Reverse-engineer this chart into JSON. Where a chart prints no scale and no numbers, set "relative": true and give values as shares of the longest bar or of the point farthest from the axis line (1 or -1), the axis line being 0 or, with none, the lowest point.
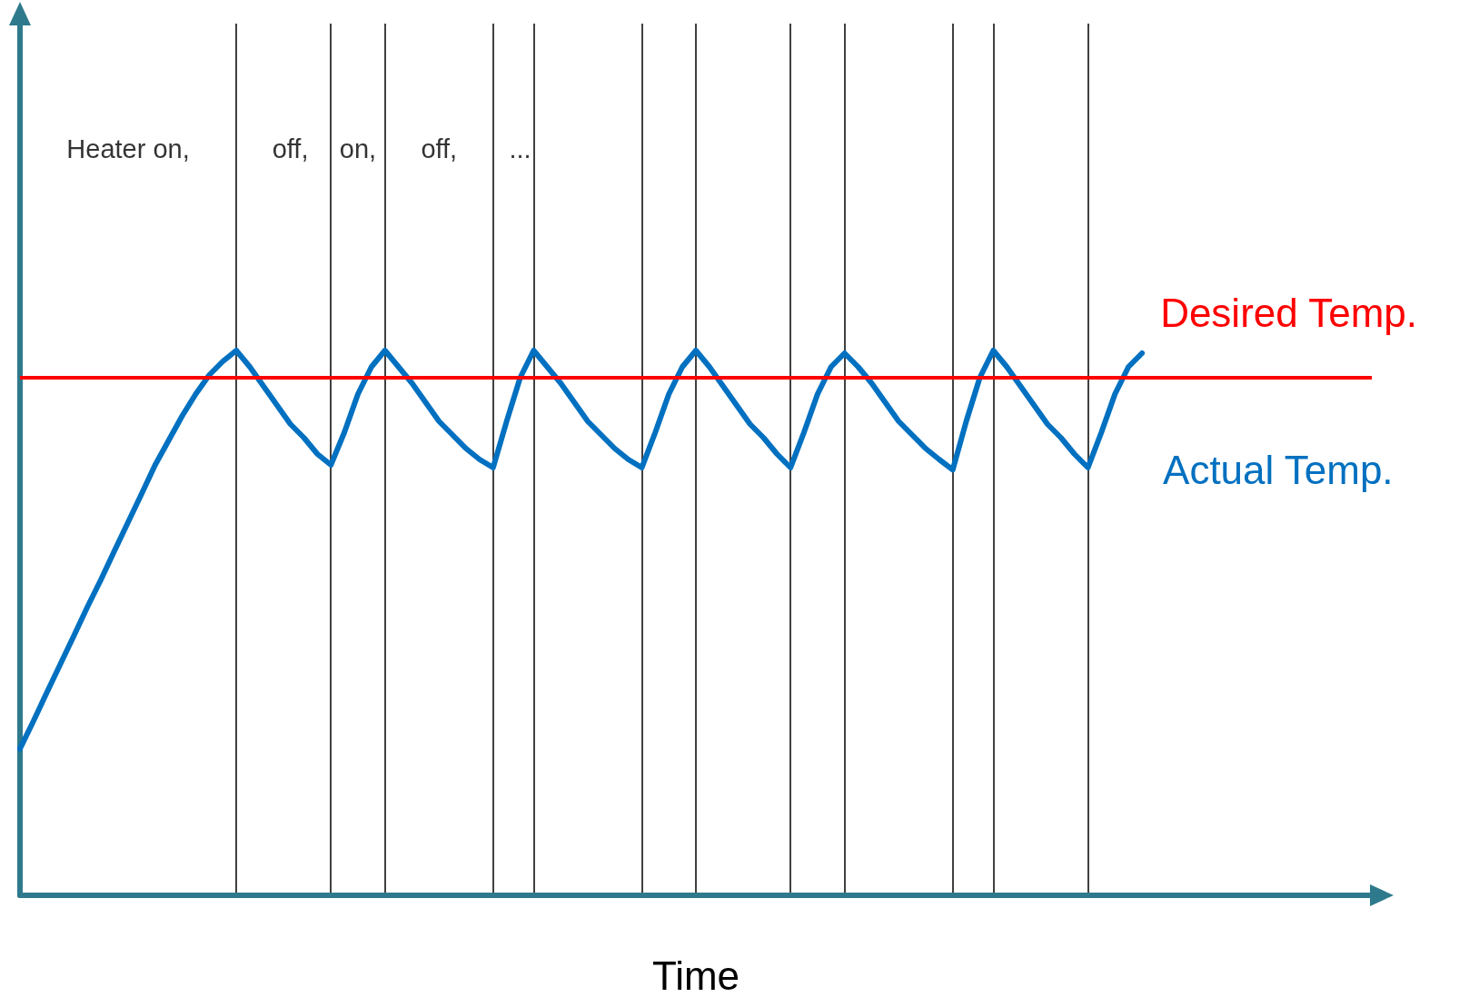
{
  "chart_data": {
    "type": "line",
    "relative": true,
    "xlabel": "Time",
    "legend": false,
    "grid": "x",
    "marker": "none",
    "line_style": "solid",
    "categories": [
      null,
      null,
      null,
      null,
      null,
      null,
      null,
      null,
      null,
      null,
      null,
      null,
      null,
      null,
      null,
      null,
      null,
      null,
      null,
      null,
      null,
      null,
      null,
      null,
      null,
      null,
      null,
      null,
      null,
      null,
      null,
      null,
      null,
      null,
      null,
      null,
      null,
      null,
      null,
      null,
      null,
      null,
      null,
      null,
      null,
      null,
      null,
      null,
      null,
      null,
      null,
      null,
      null,
      null,
      null,
      null,
      null,
      null,
      null,
      null,
      null,
      null,
      null,
      null,
      null,
      null,
      null,
      null,
      null,
      null,
      null,
      null,
      null,
      null,
      null,
      null,
      null,
      null,
      null,
      null,
      null,
      null,
      null,
      null,
      null,
      null,
      null,
      null,
      null,
      null,
      null,
      null,
      null,
      null,
      null,
      null,
      null,
      null,
      null,
      null,
      null
    ],
    "series": [
      {
        "name": "Actual Temp.",
        "color": "#0070c0",
        "values": [
          0.269,
          0.32,
          0.373,
          0.425,
          0.477,
          0.53,
          0.58,
          0.633,
          0.685,
          0.737,
          0.79,
          0.835,
          0.88,
          0.92,
          0.955,
          0.98,
          1.0,
          0.97,
          0.935,
          0.9,
          0.865,
          0.84,
          0.81,
          0.79,
          0.85,
          0.92,
          0.97,
          1.0,
          0.97,
          0.94,
          0.905,
          0.87,
          0.845,
          0.82,
          0.8,
          0.785,
          0.87,
          0.95,
          1.0,
          0.97,
          0.94,
          0.905,
          0.87,
          0.845,
          0.82,
          0.8,
          0.785,
          0.85,
          0.92,
          0.97,
          1.0,
          0.97,
          0.935,
          0.9,
          0.865,
          0.84,
          0.81,
          0.785,
          0.85,
          0.92,
          0.97,
          0.995,
          0.97,
          0.94,
          0.905,
          0.87,
          0.845,
          0.82,
          0.8,
          0.781,
          0.87,
          0.95,
          1.0,
          0.97,
          0.935,
          0.9,
          0.865,
          0.84,
          0.81,
          0.785,
          0.85,
          0.92,
          0.97,
          0.995,
          null,
          null,
          null,
          null,
          null,
          null,
          null,
          null,
          null,
          null,
          null,
          null,
          null,
          null,
          null,
          null,
          null
        ]
      }
    ],
    "ref_lines": [
      {
        "axis": "y",
        "value": 0.95,
        "label": "Desired Temp.",
        "color": "#ff0000"
      }
    ],
    "annotations": [
      "Heater on,",
      "off,",
      "on,",
      "off,",
      "..."
    ]
  }
}
